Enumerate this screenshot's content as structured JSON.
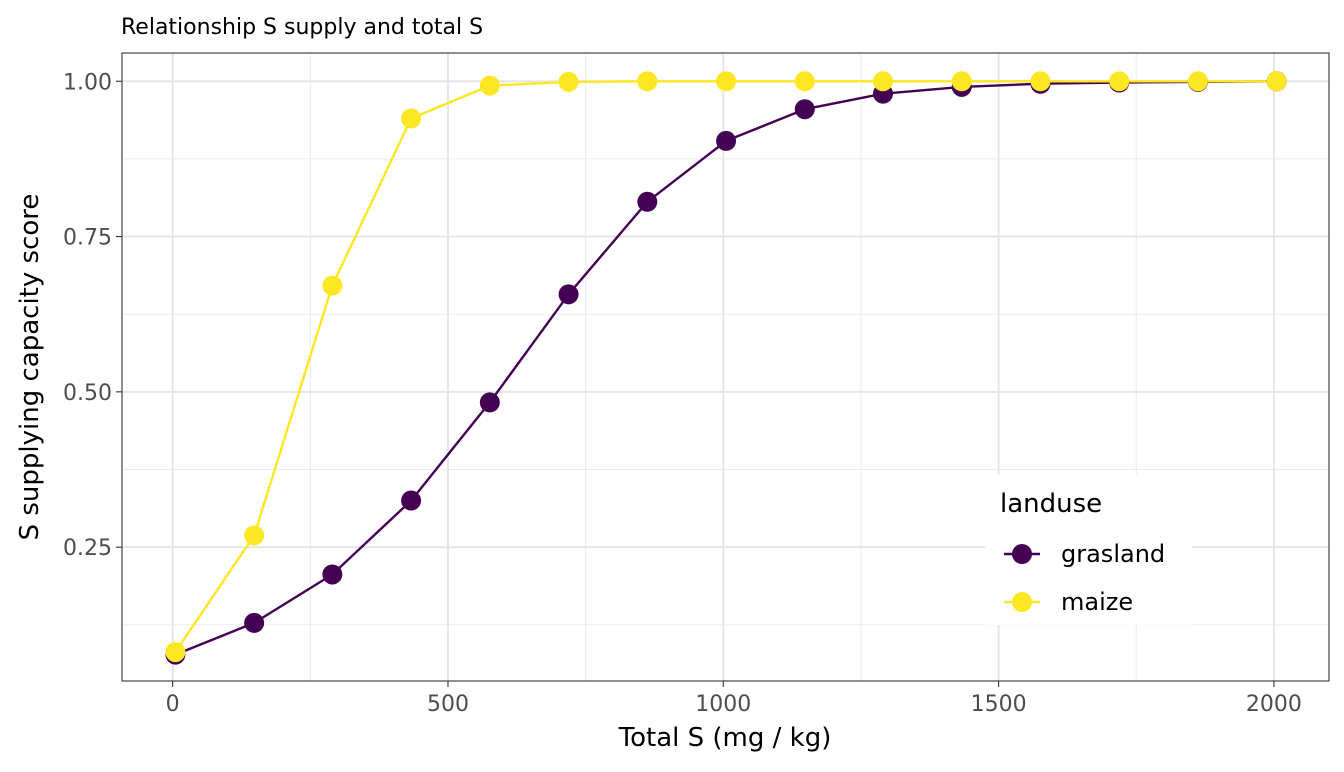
{
  "chart_data": {
    "type": "line",
    "title": "Relationship S supply and total S",
    "xlabel": "Total S (mg / kg)",
    "ylabel": "S supplying capacity score",
    "xlim": [
      -92,
      2100
    ],
    "ylim": [
      0.0345,
      1.0455
    ],
    "x_ticks": [
      0,
      500,
      1000,
      1500,
      2000
    ],
    "x_tick_labels": [
      "0",
      "500",
      "1000",
      "1500",
      "2000"
    ],
    "y_ticks": [
      0.25,
      0.5,
      0.75,
      1.0
    ],
    "y_tick_labels": [
      "0.25",
      "0.50",
      "0.75",
      "1.00"
    ],
    "x_minor": [
      250,
      750,
      1250,
      1750
    ],
    "y_minor": [
      0.125,
      0.375,
      0.625,
      0.875
    ],
    "grid": true,
    "theme": "bw",
    "legend": {
      "title": "landuse",
      "position": "bottom-right-inside"
    },
    "x": [
      5,
      148,
      290,
      433,
      576,
      719,
      862,
      1005,
      1148,
      1290,
      1433,
      1576,
      1719,
      1862,
      2005
    ],
    "series": [
      {
        "name": "grasland",
        "color": "#440154",
        "values": [
          0.077,
          0.128,
          0.206,
          0.325,
          0.483,
          0.657,
          0.806,
          0.904,
          0.955,
          0.98,
          0.991,
          0.996,
          0.998,
          0.999,
          1.0
        ]
      },
      {
        "name": "maize",
        "color": "#FDE725",
        "values": [
          0.081,
          0.269,
          0.671,
          0.94,
          0.993,
          0.999,
          1.0,
          1.0,
          1.0,
          1.0,
          1.0,
          1.0,
          1.0,
          1.0,
          1.0
        ]
      }
    ]
  }
}
